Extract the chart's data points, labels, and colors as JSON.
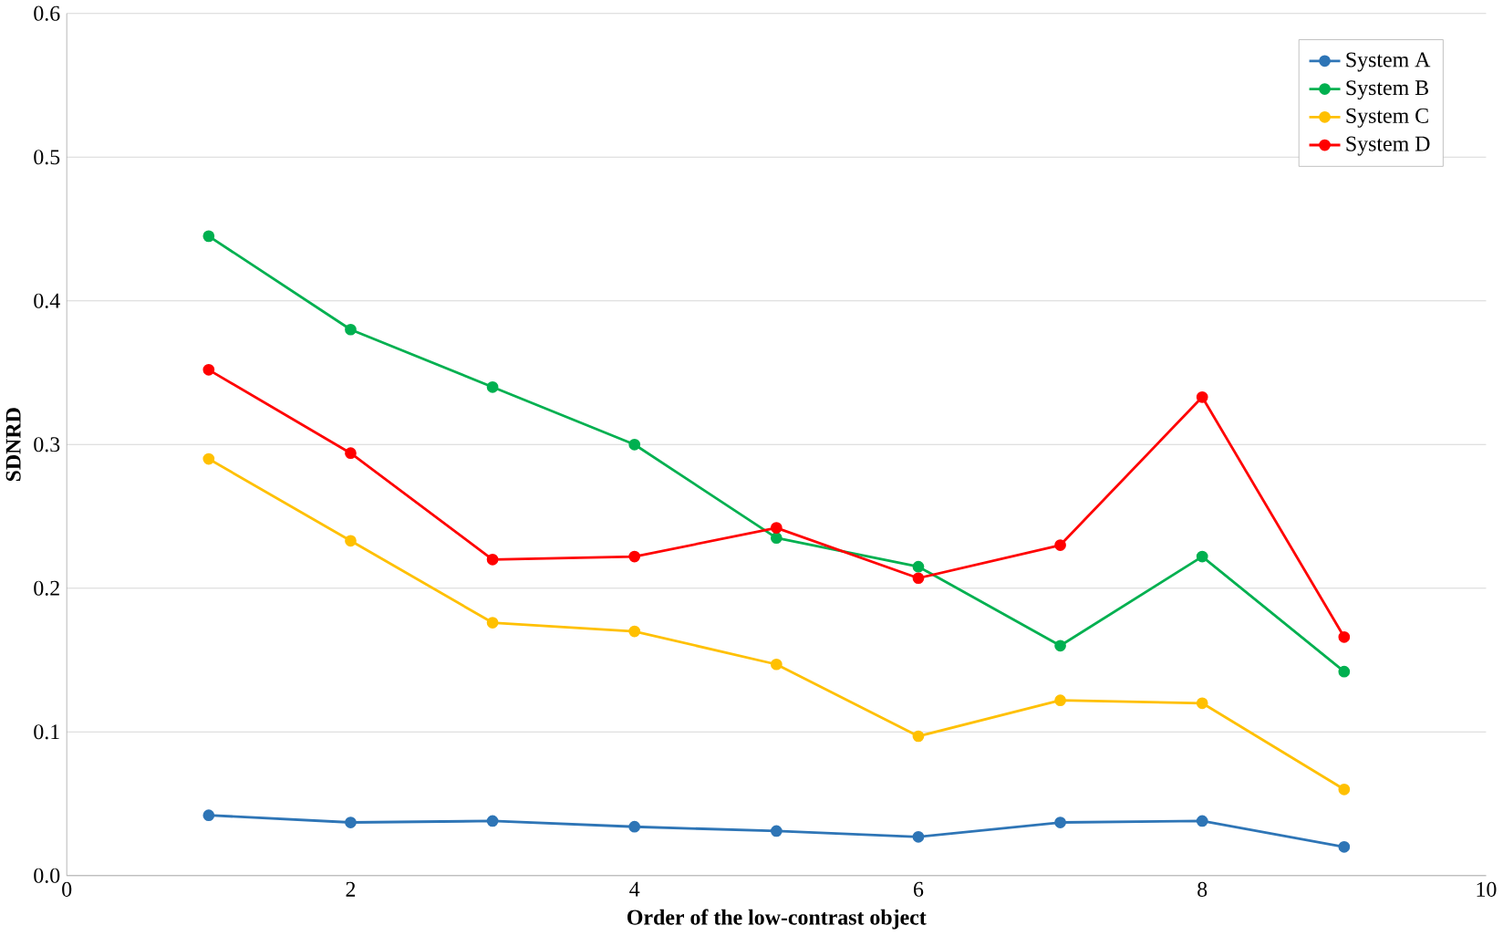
{
  "chart_data": {
    "type": "line",
    "xlabel": "Order  of the low-contrast object",
    "ylabel": "SDNRD",
    "x": [
      1,
      2,
      3,
      4,
      5,
      6,
      7,
      8,
      9
    ],
    "series": [
      {
        "name": "System A",
        "color": "#2e75b6",
        "values": [
          0.042,
          0.037,
          0.038,
          0.034,
          0.031,
          0.027,
          0.037,
          0.038,
          0.02
        ]
      },
      {
        "name": "System B",
        "color": "#00b050",
        "values": [
          0.445,
          0.38,
          0.34,
          0.3,
          0.235,
          0.215,
          0.16,
          0.222,
          0.142
        ]
      },
      {
        "name": "System C",
        "color": "#ffc000",
        "values": [
          0.29,
          0.233,
          0.176,
          0.17,
          0.147,
          0.097,
          0.122,
          0.12,
          0.06
        ]
      },
      {
        "name": "System D",
        "color": "#ff0000",
        "values": [
          0.352,
          0.294,
          0.22,
          0.222,
          0.242,
          0.207,
          0.23,
          0.333,
          0.166
        ]
      }
    ],
    "xlim": [
      0,
      10
    ],
    "xticks": [
      0,
      2,
      4,
      6,
      8,
      10
    ],
    "ylim": [
      0,
      0.6
    ],
    "yticks": [
      {
        "value": 0,
        "label": "0.0"
      },
      {
        "value": 0.1,
        "label": "0.1"
      },
      {
        "value": 0.2,
        "label": "0.2"
      },
      {
        "value": 0.3,
        "label": "0.3"
      },
      {
        "value": 0.4,
        "label": "0.4"
      },
      {
        "value": 0.5,
        "label": "0.5"
      },
      {
        "value": 0.6,
        "label": "0.6"
      }
    ],
    "grid": "y",
    "legend": "top right",
    "marker": "circle",
    "line_style": "solid"
  }
}
